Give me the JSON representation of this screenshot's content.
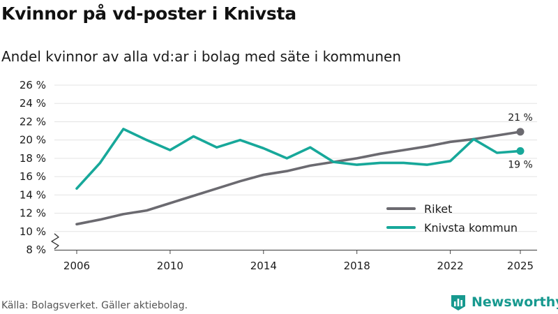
{
  "title": "Kvinnor på vd-poster i Knivsta",
  "subtitle": "Andel kvinnor av alla vd:ar i bolag med säte i kommunen",
  "source": "Källa: Bolagsverket. Gäller aktiebolag.",
  "brand": {
    "name": "Newsworthy",
    "icon": "newsworthy-logo-icon",
    "color": "#17998f"
  },
  "chart_data": {
    "type": "line",
    "title": "Kvinnor på vd-poster i Knivsta",
    "xlabel": "",
    "ylabel": "",
    "x": [
      2006,
      2007,
      2008,
      2009,
      2010,
      2011,
      2012,
      2013,
      2014,
      2015,
      2016,
      2017,
      2018,
      2019,
      2020,
      2021,
      2022,
      2023,
      2024,
      2025
    ],
    "xticks": [
      2006,
      2010,
      2014,
      2018,
      2022,
      2025
    ],
    "xtick_labels": [
      "2006",
      "2010",
      "2014",
      "2018",
      "2022",
      "2025"
    ],
    "ylim": [
      8,
      26
    ],
    "yticks": [
      8,
      10,
      12,
      14,
      16,
      18,
      20,
      22,
      24,
      26
    ],
    "ytick_labels": [
      "8 %",
      "10 %",
      "12 %",
      "14 %",
      "16 %",
      "18 %",
      "20 %",
      "22 %",
      "24 %",
      "26 %"
    ],
    "y_axis_break": true,
    "grid": true,
    "legend_position": "bottom-right",
    "series": [
      {
        "name": "Riket",
        "color": "#6b6a70",
        "values": [
          10.8,
          11.3,
          11.9,
          12.3,
          13.1,
          13.9,
          14.7,
          15.5,
          16.2,
          16.6,
          17.2,
          17.6,
          18.0,
          18.5,
          18.9,
          19.3,
          19.8,
          20.1,
          20.5,
          20.9
        ],
        "end_label": "21 %",
        "end_label_position": "above"
      },
      {
        "name": "Knivsta kommun",
        "color": "#17a89a",
        "values": [
          14.7,
          17.5,
          21.2,
          20.0,
          18.9,
          20.4,
          19.2,
          20.0,
          19.1,
          18.0,
          19.2,
          17.6,
          17.3,
          17.5,
          17.5,
          17.3,
          17.7,
          20.1,
          18.6,
          18.8
        ],
        "end_label": "19 %",
        "end_label_position": "below"
      }
    ]
  }
}
